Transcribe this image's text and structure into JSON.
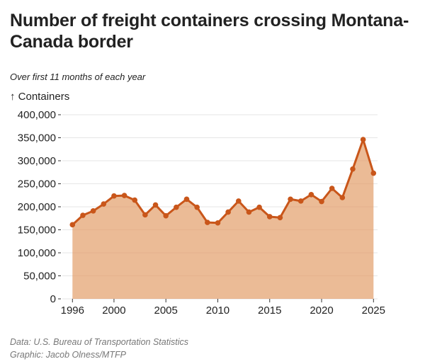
{
  "chart_data": {
    "type": "area",
    "title": "Number of freight containers crossing Montana-Canada border",
    "subtitle": "Over first 11 months of each year",
    "ylabel": "↑ Containers",
    "xlabel": "",
    "x": [
      1996,
      1997,
      1998,
      1999,
      2000,
      2001,
      2002,
      2003,
      2004,
      2005,
      2006,
      2007,
      2008,
      2009,
      2010,
      2011,
      2012,
      2013,
      2014,
      2015,
      2016,
      2017,
      2018,
      2019,
      2020,
      2021,
      2022,
      2023,
      2024,
      2025
    ],
    "series": [
      {
        "name": "Containers",
        "values": [
          161000,
          181500,
          191000,
          206000,
          223500,
          224500,
          214500,
          182500,
          204000,
          180500,
          199000,
          216500,
          199000,
          166000,
          165000,
          188500,
          212500,
          188500,
          199000,
          178500,
          176500,
          216500,
          212500,
          226500,
          211500,
          240000,
          220000,
          282000,
          346000,
          273000
        ]
      }
    ],
    "xlim": [
      1996,
      2025
    ],
    "ylim": [
      0,
      400000
    ],
    "xticks": [
      1996,
      2000,
      2005,
      2010,
      2015,
      2020,
      2025
    ],
    "xtick_labels": [
      "1996",
      "2000",
      "2005",
      "2010",
      "2015",
      "2020",
      "2025"
    ],
    "yticks": [
      0,
      50000,
      100000,
      150000,
      200000,
      250000,
      300000,
      350000,
      400000
    ],
    "ytick_labels": [
      "0",
      "50,000",
      "100,000",
      "150,000",
      "200,000",
      "250,000",
      "300,000",
      "350,000",
      "400,000"
    ],
    "grid": true,
    "legend": "none",
    "colors": {
      "line": "#c9561a",
      "fill": "#ebbb96",
      "grid": "#e6e6e6"
    }
  },
  "footer": {
    "source": "Data: U.S. Bureau of Transportation Statistics",
    "credit": "Graphic: Jacob Olness/MTFP"
  }
}
